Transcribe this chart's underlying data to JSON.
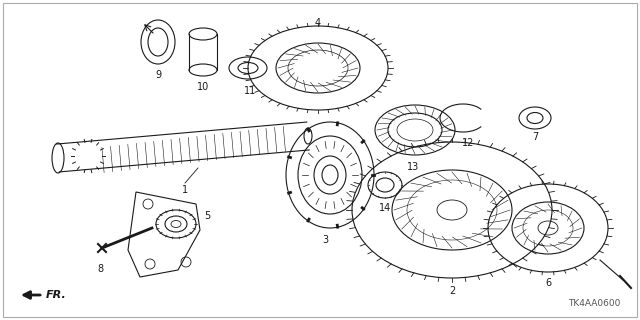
{
  "background_color": "#ffffff",
  "line_color": "#1a1a1a",
  "diagram_code": "TK4AA0600",
  "figsize": [
    6.4,
    3.2
  ],
  "dpi": 100
}
